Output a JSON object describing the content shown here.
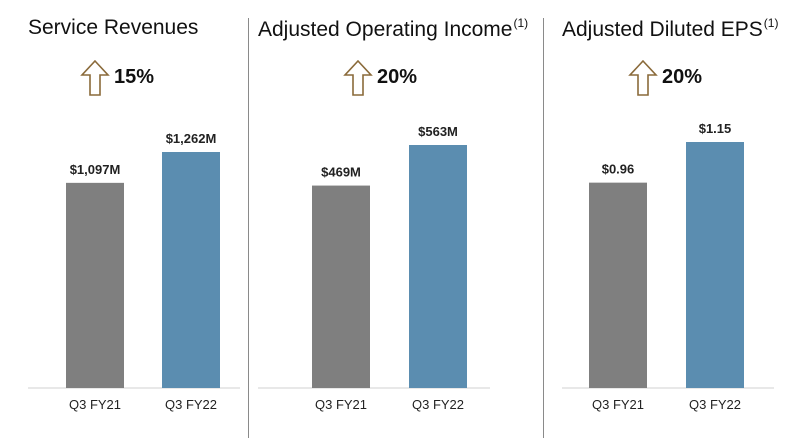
{
  "colors": {
    "previous": "#7f7f7f",
    "current": "#5b8db0",
    "arrow": "#8a6a3a",
    "baseline": "#d0d0d0",
    "divider": "#8a8a8a"
  },
  "chart_data": [
    {
      "type": "bar",
      "title": "Service Revenues",
      "title_superscript": "",
      "growth_label": "15%",
      "growth_icon": "up-arrow-icon",
      "categories": [
        "Q3 FY21",
        "Q3 FY22"
      ],
      "values": [
        1097,
        1262
      ],
      "value_labels": [
        "$1,097M",
        "$1,262M"
      ],
      "ylim": [
        0,
        1400
      ]
    },
    {
      "type": "bar",
      "title": "Adjusted Operating Income",
      "title_superscript": "(1)",
      "growth_label": "20%",
      "growth_icon": "up-arrow-icon",
      "categories": [
        "Q3 FY21",
        "Q3 FY22"
      ],
      "values": [
        469,
        563
      ],
      "value_labels": [
        "$469M",
        "$563M"
      ],
      "ylim": [
        0,
        630
      ]
    },
    {
      "type": "bar",
      "title": "Adjusted Diluted EPS",
      "title_superscript": "(1)",
      "growth_label": "20%",
      "growth_icon": "up-arrow-icon",
      "categories": [
        "Q3 FY21",
        "Q3 FY22"
      ],
      "values": [
        0.96,
        1.15
      ],
      "value_labels": [
        "$0.96",
        "$1.15"
      ],
      "ylim": [
        0,
        1.3
      ]
    }
  ]
}
